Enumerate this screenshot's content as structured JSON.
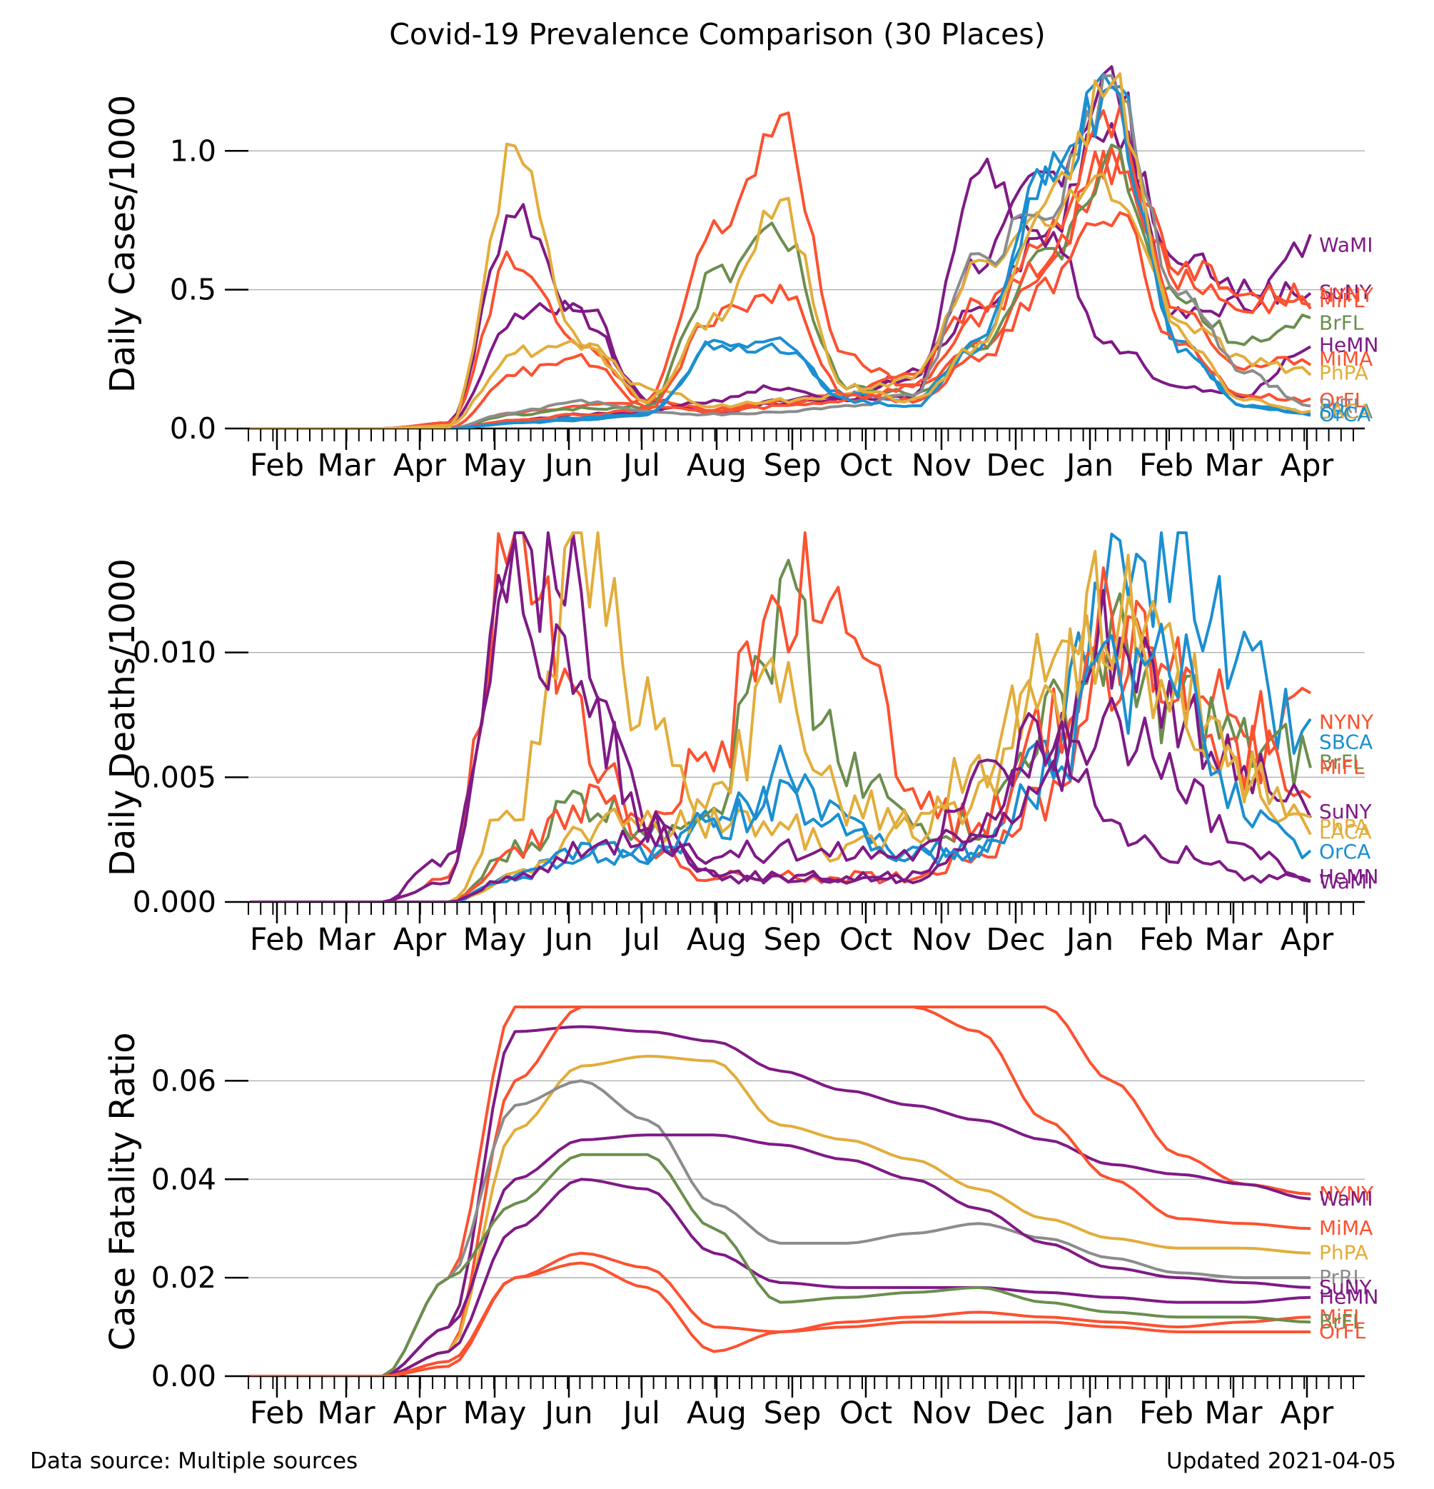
{
  "figure": {
    "title": "Covid-19 Prevalence Comparison (30 Places)",
    "source": "Data source: Multiple sources",
    "updated": "Updated 2021-04-05"
  },
  "colors": {
    "purple": "#7f1a86",
    "orange": "#fc5130",
    "gold": "#e2ad3b",
    "green": "#6b8e4e",
    "gray": "#8c8c8c",
    "blue": "#1b8fd1",
    "grid": "#b0b0b0"
  },
  "x_axis": {
    "ticks": [
      "Feb",
      "Mar",
      "Apr",
      "May",
      "Jun",
      "Jul",
      "Aug",
      "Sep",
      "Oct",
      "Nov",
      "Dec",
      "Jan",
      "Feb",
      "Mar",
      "Apr"
    ]
  },
  "chart_data": [
    {
      "type": "line",
      "ylabel": "Daily Cases/1000",
      "ylim": [
        0,
        1.33
      ],
      "yticks": [
        "0.0",
        "0.5",
        "1.0"
      ],
      "grid": "horizontal",
      "series": [
        {
          "name": "WaMI",
          "color": "purple",
          "values": [
            0,
            0,
            0,
            0.02,
            0.8,
            0.4,
            0.1,
            0.06,
            0.09,
            0.11,
            0.18,
            0.6,
            0.9,
            1.25,
            0.4,
            0.45,
            0.66
          ]
        },
        {
          "name": "SuNY",
          "color": "purple",
          "values": [
            0,
            0,
            0,
            0.01,
            0.4,
            0.45,
            0.1,
            0.06,
            0.1,
            0.12,
            0.2,
            0.45,
            0.7,
            1.1,
            0.65,
            0.5,
            0.49
          ]
        },
        {
          "name": "NYNY",
          "color": "orange",
          "values": [
            0,
            0,
            0,
            0.02,
            0.62,
            0.3,
            0.1,
            0.07,
            0.1,
            0.12,
            0.2,
            0.45,
            0.7,
            1.1,
            0.6,
            0.48,
            0.48
          ]
        },
        {
          "name": "MiFL",
          "color": "orange",
          "values": [
            0,
            0,
            0,
            0,
            0.06,
            0.08,
            0.1,
            0.7,
            1.08,
            0.25,
            0.15,
            0.3,
            0.55,
            0.95,
            0.55,
            0.45,
            0.46
          ]
        },
        {
          "name": "BrFL",
          "color": "green",
          "values": [
            0,
            0,
            0,
            0,
            0.05,
            0.07,
            0.08,
            0.55,
            0.7,
            0.15,
            0.13,
            0.3,
            0.6,
            0.95,
            0.45,
            0.32,
            0.38
          ]
        },
        {
          "name": "HeMN",
          "color": "purple",
          "values": [
            0,
            0,
            0,
            0,
            0.03,
            0.05,
            0.06,
            0.1,
            0.15,
            0.1,
            0.12,
            0.9,
            0.7,
            0.3,
            0.15,
            0.12,
            0.3
          ]
        },
        {
          "name": "MiMA",
          "color": "orange",
          "values": [
            0,
            0,
            0,
            0,
            0.2,
            0.25,
            0.08,
            0.06,
            0.08,
            0.1,
            0.15,
            0.4,
            0.6,
            1.0,
            0.45,
            0.22,
            0.25
          ]
        },
        {
          "name": "PhPA",
          "color": "gold",
          "values": [
            0,
            0,
            0,
            0.01,
            0.28,
            0.3,
            0.15,
            0.08,
            0.1,
            0.12,
            0.18,
            0.6,
            0.75,
            0.9,
            0.4,
            0.25,
            0.2
          ]
        },
        {
          "name": "SBCA",
          "color": "blue",
          "values": [
            0,
            0,
            0,
            0,
            0.02,
            0.03,
            0.05,
            0.3,
            0.3,
            0.12,
            0.1,
            0.3,
            0.9,
            1.3,
            0.3,
            0.08,
            0.06
          ]
        },
        {
          "name": "OrFL",
          "color": "orange",
          "values": [
            0,
            0,
            0,
            0,
            0.03,
            0.05,
            0.07,
            0.4,
            0.5,
            0.12,
            0.1,
            0.25,
            0.5,
            0.8,
            0.3,
            0.12,
            0.1
          ]
        },
        {
          "name": "PrRI",
          "color": "gray",
          "values": [
            0,
            0,
            0,
            0,
            0.06,
            0.1,
            0.06,
            0.05,
            0.06,
            0.08,
            0.12,
            0.6,
            0.8,
            1.2,
            0.5,
            0.2,
            0.08
          ]
        },
        {
          "name": "OrCA",
          "color": "blue",
          "values": [
            0,
            0,
            0,
            0,
            0.02,
            0.04,
            0.05,
            0.3,
            0.3,
            0.1,
            0.08,
            0.3,
            0.9,
            1.2,
            0.3,
            0.08,
            0.05
          ]
        },
        {
          "name": "LACA",
          "color": "gold",
          "values": [
            0,
            0,
            0,
            0,
            1.0,
            0.3,
            0.1,
            0.4,
            0.8,
            0.15,
            0.1,
            0.3,
            0.8,
            1.25,
            0.35,
            0.1,
            0.06
          ]
        }
      ]
    },
    {
      "type": "line",
      "ylabel": "Daily Deaths/1000",
      "ylim": [
        0,
        0.0148
      ],
      "yticks": [
        "0.000",
        "0.005",
        "0.010"
      ],
      "grid": "horizontal",
      "series": [
        {
          "name": "NYNY",
          "color": "orange",
          "values": [
            0,
            0,
            0,
            0.001,
            0.015,
            0.007,
            0.002,
            0.001,
            0.001,
            0.001,
            0.001,
            0.002,
            0.004,
            0.01,
            0.009,
            0.008,
            0.0072
          ]
        },
        {
          "name": "SBCA",
          "color": "blue",
          "values": [
            0,
            0,
            0,
            0,
            0.001,
            0.002,
            0.002,
            0.003,
            0.005,
            0.003,
            0.002,
            0.002,
            0.006,
            0.012,
            0.015,
            0.009,
            0.0064
          ]
        },
        {
          "name": "BrFL",
          "color": "green",
          "values": [
            0,
            0,
            0,
            0,
            0.002,
            0.004,
            0.003,
            0.004,
            0.012,
            0.006,
            0.003,
            0.003,
            0.007,
            0.01,
            0.008,
            0.006,
            0.0056
          ]
        },
        {
          "name": "MiFL",
          "color": "orange",
          "values": [
            0,
            0,
            0,
            0,
            0.002,
            0.004,
            0.003,
            0.006,
            0.013,
            0.012,
            0.004,
            0.003,
            0.007,
            0.011,
            0.009,
            0.006,
            0.0054
          ]
        },
        {
          "name": "SuNY",
          "color": "purple",
          "values": [
            0,
            0,
            0,
            0.002,
            0.015,
            0.012,
            0.003,
            0.001,
            0.001,
            0.001,
            0.001,
            0.003,
            0.006,
            0.011,
            0.008,
            0.005,
            0.0036
          ]
        },
        {
          "name": "PhPA",
          "color": "gold",
          "values": [
            0,
            0,
            0,
            0,
            0.004,
            0.013,
            0.008,
            0.003,
            0.003,
            0.002,
            0.003,
            0.006,
            0.009,
            0.011,
            0.008,
            0.005,
            0.003
          ]
        },
        {
          "name": "LACA",
          "color": "gold",
          "values": [
            0,
            0,
            0,
            0,
            0.001,
            0.003,
            0.003,
            0.004,
            0.009,
            0.004,
            0.003,
            0.004,
            0.008,
            0.012,
            0.009,
            0.005,
            0.0028
          ]
        },
        {
          "name": "OrCA",
          "color": "blue",
          "values": [
            0,
            0,
            0,
            0,
            0.001,
            0.002,
            0.002,
            0.003,
            0.004,
            0.003,
            0.002,
            0.002,
            0.005,
            0.009,
            0.009,
            0.004,
            0.002
          ]
        },
        {
          "name": "HeMN",
          "color": "purple",
          "values": [
            0,
            0,
            0,
            0,
            0.001,
            0.002,
            0.003,
            0.001,
            0.001,
            0.001,
            0.001,
            0.005,
            0.007,
            0.003,
            0.002,
            0.001,
            0.001
          ]
        },
        {
          "name": "WaMI",
          "color": "purple",
          "values": [
            0,
            0,
            0,
            0.001,
            0.013,
            0.009,
            0.003,
            0.002,
            0.002,
            0.002,
            0.002,
            0.003,
            0.005,
            0.007,
            0.005,
            0.002,
            0.0008
          ]
        }
      ]
    },
    {
      "type": "line",
      "ylabel": "Case Fatality Ratio",
      "ylim": [
        0,
        0.075
      ],
      "yticks": [
        "0.00",
        "0.02",
        "0.04",
        "0.06"
      ],
      "grid": "horizontal",
      "series": [
        {
          "name": "NYNY",
          "color": "orange",
          "values": [
            0,
            0,
            0,
            0.02,
            0.075,
            0.075,
            0.075,
            0.075,
            0.075,
            0.075,
            0.075,
            0.075,
            0.075,
            0.06,
            0.045,
            0.039,
            0.037
          ]
        },
        {
          "name": "WaMI",
          "color": "purple",
          "values": [
            0,
            0,
            0,
            0.01,
            0.07,
            0.071,
            0.07,
            0.068,
            0.062,
            0.058,
            0.055,
            0.052,
            0.048,
            0.043,
            0.041,
            0.039,
            0.036
          ]
        },
        {
          "name": "MiMA",
          "color": "orange",
          "values": [
            0,
            0,
            0,
            0.005,
            0.06,
            0.075,
            0.075,
            0.075,
            0.075,
            0.075,
            0.075,
            0.07,
            0.052,
            0.04,
            0.032,
            0.031,
            0.03
          ]
        },
        {
          "name": "PhPA",
          "color": "gold",
          "values": [
            0,
            0,
            0,
            0.005,
            0.05,
            0.063,
            0.065,
            0.064,
            0.051,
            0.048,
            0.044,
            0.038,
            0.032,
            0.028,
            0.026,
            0.026,
            0.025
          ]
        },
        {
          "name": "PrRI",
          "color": "gray",
          "values": [
            0,
            0,
            0,
            0.02,
            0.055,
            0.06,
            0.052,
            0.035,
            0.027,
            0.027,
            0.029,
            0.031,
            0.028,
            0.024,
            0.021,
            0.02,
            0.02
          ]
        },
        {
          "name": "SuNY",
          "color": "purple",
          "values": [
            0,
            0,
            0,
            0.01,
            0.04,
            0.048,
            0.049,
            0.049,
            0.047,
            0.044,
            0.04,
            0.034,
            0.027,
            0.022,
            0.02,
            0.019,
            0.018
          ]
        },
        {
          "name": "HeMN",
          "color": "purple",
          "values": [
            0,
            0,
            0,
            0.005,
            0.03,
            0.04,
            0.038,
            0.025,
            0.019,
            0.018,
            0.018,
            0.018,
            0.017,
            0.016,
            0.015,
            0.015,
            0.016
          ]
        },
        {
          "name": "MiFL",
          "color": "orange",
          "values": [
            0,
            0,
            0,
            0.002,
            0.02,
            0.023,
            0.018,
            0.005,
            0.009,
            0.011,
            0.012,
            0.013,
            0.012,
            0.011,
            0.01,
            0.011,
            0.012
          ]
        },
        {
          "name": "BrFL",
          "color": "green",
          "values": [
            0,
            0,
            0,
            0.02,
            0.035,
            0.045,
            0.045,
            0.03,
            0.015,
            0.016,
            0.017,
            0.018,
            0.015,
            0.013,
            0.012,
            0.012,
            0.011
          ]
        },
        {
          "name": "OrFL",
          "color": "orange",
          "values": [
            0,
            0,
            0,
            0.003,
            0.02,
            0.025,
            0.022,
            0.01,
            0.009,
            0.01,
            0.011,
            0.011,
            0.011,
            0.01,
            0.009,
            0.009,
            0.009
          ]
        }
      ]
    }
  ]
}
